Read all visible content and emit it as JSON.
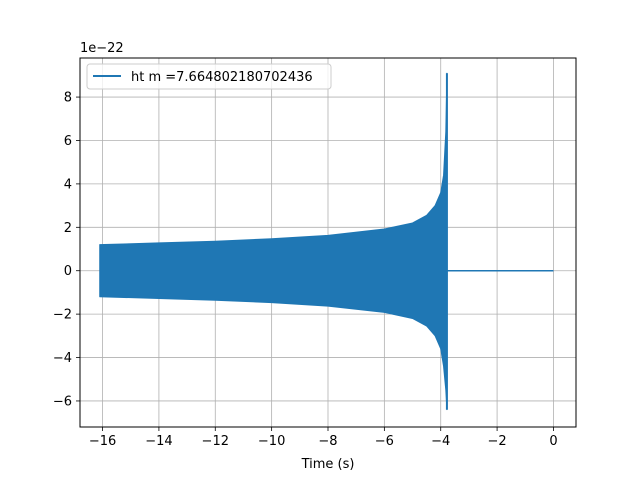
{
  "chart_data": {
    "type": "line",
    "title": "",
    "xlabel": "Time (s)",
    "ylabel": "",
    "offset_text": "1e−22",
    "y_scale_factor": 1e-22,
    "xlim": [
      -16.8,
      0.8
    ],
    "ylim": [
      -7.2,
      9.8
    ],
    "grid": true,
    "legend_position": "upper-left",
    "x_ticks": [
      -16,
      -14,
      -12,
      -10,
      -8,
      -6,
      -4,
      -2,
      0
    ],
    "x_tick_labels": [
      "−16",
      "−14",
      "−12",
      "−10",
      "−8",
      "−6",
      "−4",
      "−2",
      "0"
    ],
    "y_ticks": [
      -6,
      -4,
      -2,
      0,
      2,
      4,
      6,
      8
    ],
    "y_tick_labels": [
      "−6",
      "−4",
      "−2",
      "0",
      "2",
      "4",
      "6",
      "8"
    ],
    "series": [
      {
        "name": "ht m =7.664802180702436",
        "color": "#1f77b4",
        "signal_start": -16.1,
        "merger_time": -3.78,
        "signal_end": 0.0,
        "envelope_upper": [
          [
            -16.1,
            1.2
          ],
          [
            -14,
            1.28
          ],
          [
            -12,
            1.36
          ],
          [
            -10,
            1.47
          ],
          [
            -8,
            1.63
          ],
          [
            -6,
            1.92
          ],
          [
            -5,
            2.2
          ],
          [
            -4.5,
            2.55
          ],
          [
            -4.2,
            3.0
          ],
          [
            -4.0,
            3.6
          ],
          [
            -3.9,
            4.4
          ],
          [
            -3.82,
            6.4
          ],
          [
            -3.78,
            9.1
          ]
        ],
        "envelope_lower": [
          [
            -16.1,
            -1.2
          ],
          [
            -14,
            -1.28
          ],
          [
            -12,
            -1.36
          ],
          [
            -10,
            -1.47
          ],
          [
            -8,
            -1.63
          ],
          [
            -6,
            -1.92
          ],
          [
            -5,
            -2.2
          ],
          [
            -4.5,
            -2.55
          ],
          [
            -4.2,
            -3.0
          ],
          [
            -4.0,
            -3.6
          ],
          [
            -3.9,
            -4.4
          ],
          [
            -3.82,
            -5.5
          ],
          [
            -3.78,
            -6.4
          ]
        ],
        "post_merger_value": 0.0
      }
    ]
  }
}
